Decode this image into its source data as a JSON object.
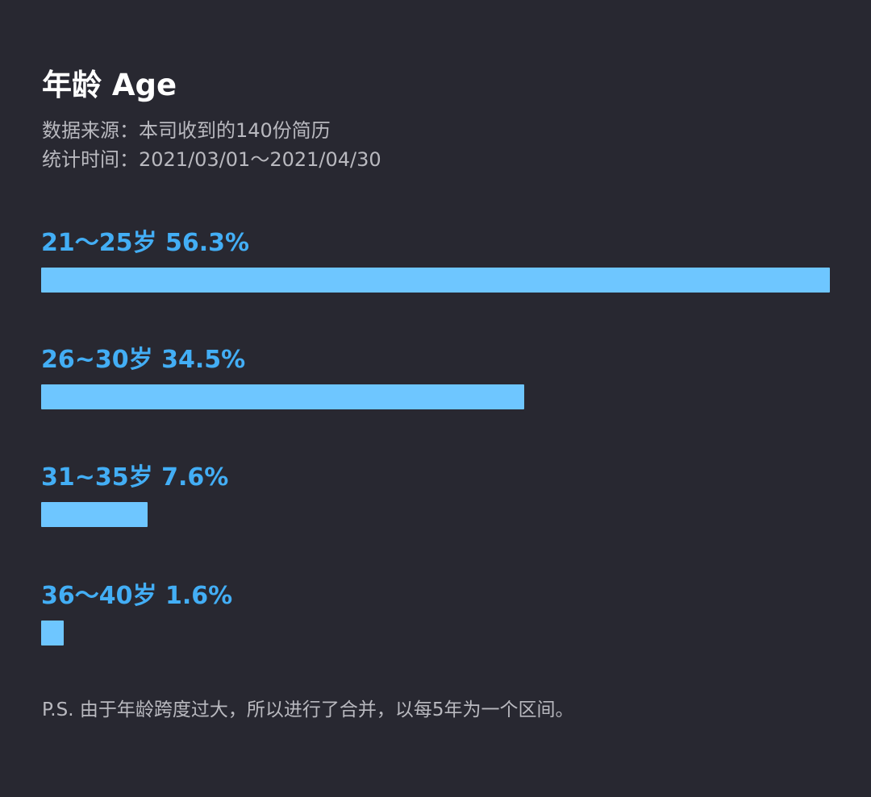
{
  "header": {
    "title": "年龄 Age",
    "source": "数据来源：本司收到的140份简历",
    "period": "统计时间：2021/03/01～2021/04/30"
  },
  "chart_data": {
    "type": "bar",
    "orientation": "horizontal",
    "categories": [
      "21～25岁",
      "26~30岁",
      "31~35岁",
      "36～40岁"
    ],
    "values": [
      56.3,
      34.5,
      7.6,
      1.6
    ],
    "labels": [
      "21～25岁 56.3%",
      "26~30岁 34.5%",
      "31~35岁 7.6%",
      "36～40岁 1.6%"
    ],
    "unit": "%",
    "bar_color": "#6ec6ff",
    "label_color": "#43aef5",
    "grid": false,
    "legend": false
  },
  "footnote": "P.S. 由于年龄跨度过大，所以进行了合并，以每5年为一个区间。",
  "colors": {
    "background": "#282831",
    "title": "#ffffff",
    "meta_text": "#b9b9bf"
  }
}
